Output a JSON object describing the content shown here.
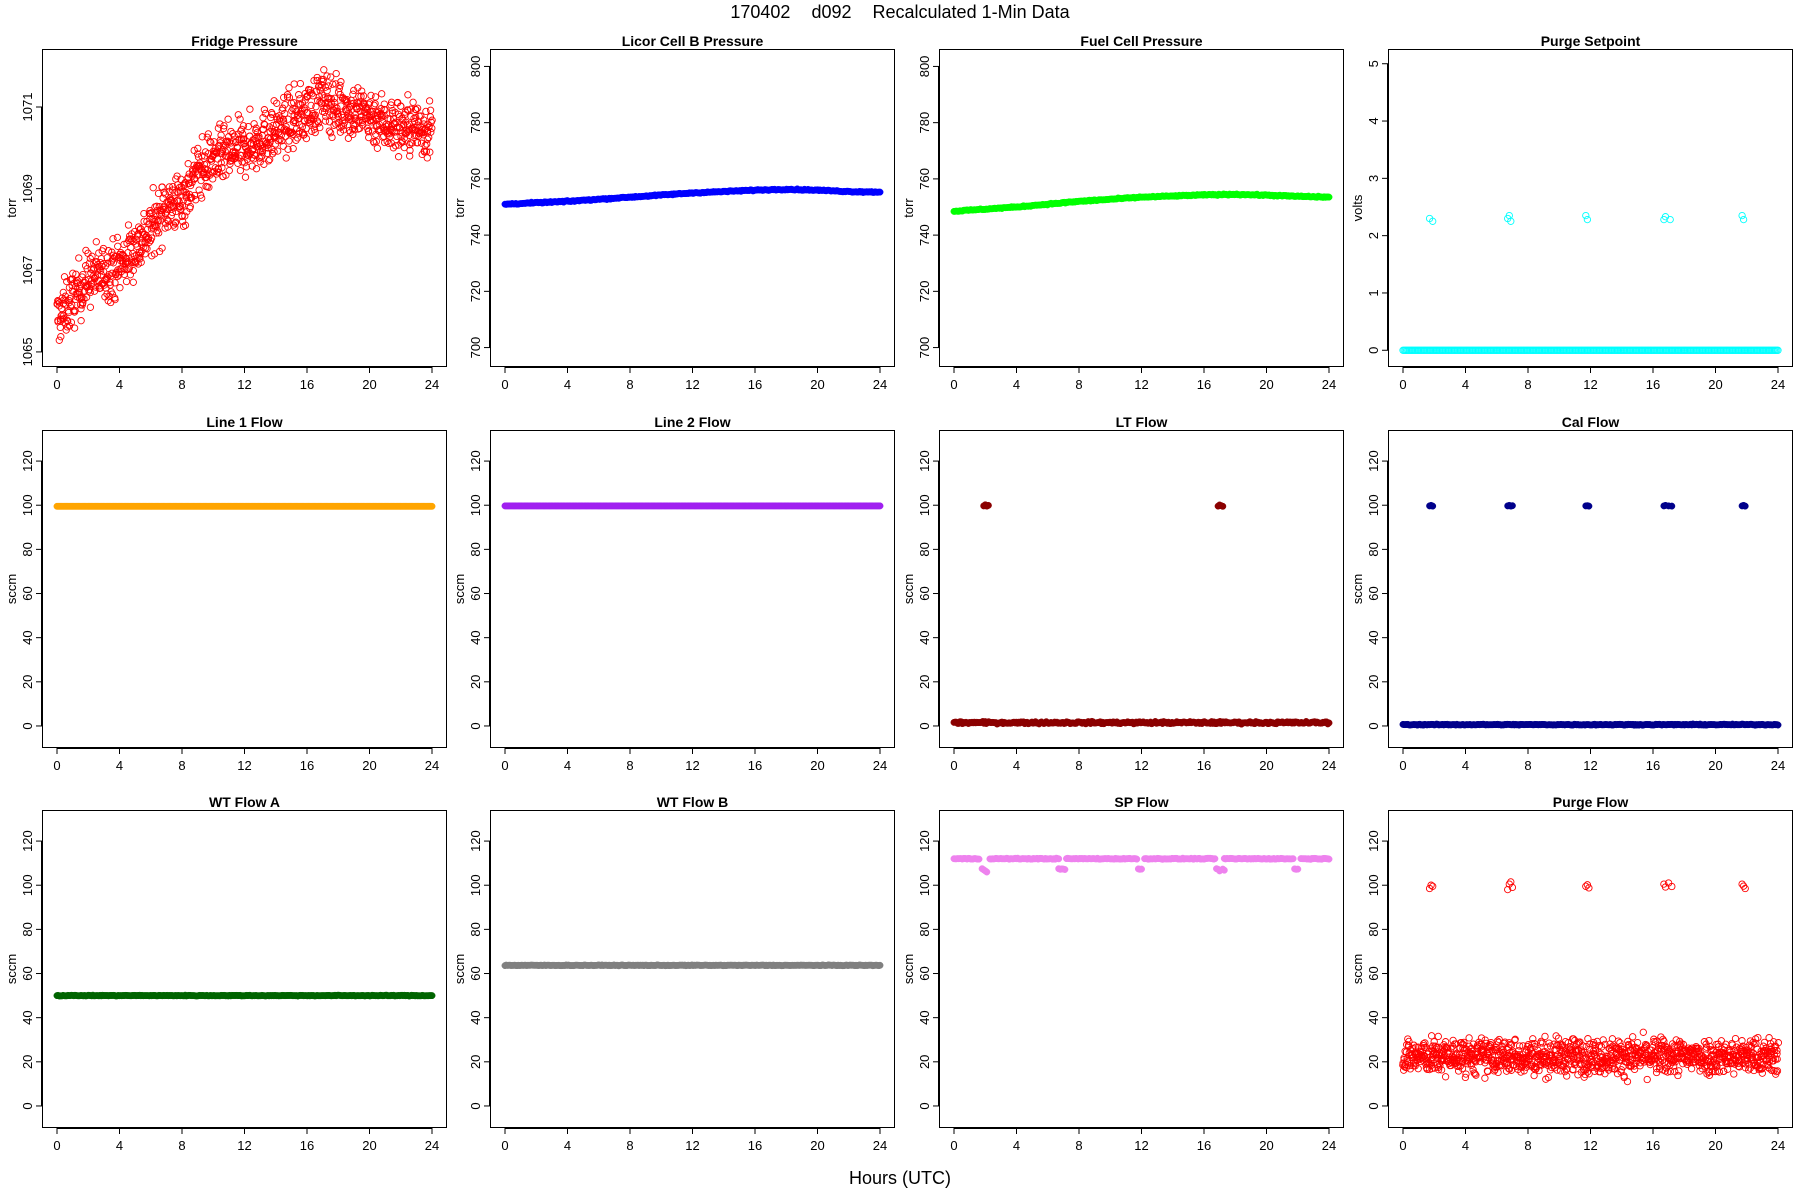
{
  "figure": {
    "title_parts": [
      "170402",
      "d092",
      "Recalculated 1-Min Data"
    ],
    "xlabel": "Hours (UTC)"
  },
  "chart_data": [
    {
      "type": "scatter",
      "title": "Fridge Pressure",
      "ylabel": "torr",
      "xlim": [
        0,
        24
      ],
      "ylim": [
        1064.9,
        1072.2
      ],
      "xticks": [
        0,
        4,
        8,
        12,
        16,
        20,
        24
      ],
      "yticks": [
        1065,
        1067,
        1069,
        1071
      ],
      "marker": "open",
      "color": "#ff0000",
      "series": [
        {
          "x": [
            0,
            2,
            4,
            6,
            7,
            8,
            9,
            10,
            12,
            14,
            16,
            17,
            18,
            19,
            20,
            21,
            22,
            23,
            24
          ],
          "y": [
            1065.8,
            1066.8,
            1067.1,
            1068.0,
            1068.6,
            1068.7,
            1069.4,
            1069.7,
            1070.0,
            1070.4,
            1070.9,
            1071.2,
            1071.0,
            1070.9,
            1070.8,
            1070.6,
            1070.5,
            1070.5,
            1070.4
          ],
          "noise": 0.35
        }
      ]
    },
    {
      "type": "scatter",
      "title": "Licor Cell B Pressure",
      "ylabel": "torr",
      "xlim": [
        0,
        24
      ],
      "ylim": [
        697,
        803
      ],
      "xticks": [
        0,
        4,
        8,
        12,
        16,
        20,
        24
      ],
      "yticks": [
        700,
        720,
        740,
        760,
        780,
        800
      ],
      "marker": "filled",
      "color": "#0000ff",
      "series": [
        {
          "x": [
            0,
            4,
            8,
            12,
            16,
            18,
            20,
            22,
            24
          ],
          "y": [
            751,
            752,
            753.5,
            755,
            756,
            756.3,
            756,
            755.5,
            755.3
          ],
          "noise": 0.2
        }
      ]
    },
    {
      "type": "scatter",
      "title": "Fuel Cell Pressure",
      "ylabel": "torr",
      "xlim": [
        0,
        24
      ],
      "ylim": [
        697,
        803
      ],
      "xticks": [
        0,
        4,
        8,
        12,
        16,
        20,
        24
      ],
      "yticks": [
        700,
        720,
        740,
        760,
        780,
        800
      ],
      "marker": "filled",
      "color": "#00ff00",
      "series": [
        {
          "x": [
            0,
            4,
            8,
            12,
            16,
            18,
            20,
            22,
            24
          ],
          "y": [
            748.5,
            750,
            752,
            753.5,
            754.3,
            754.5,
            754.2,
            753.8,
            753.5
          ],
          "noise": 0.2
        }
      ]
    },
    {
      "type": "scatter",
      "title": "Purge Setpoint",
      "ylabel": "volts",
      "xlim": [
        0,
        24
      ],
      "ylim": [
        -0.1,
        5.1
      ],
      "xticks": [
        0,
        4,
        8,
        12,
        16,
        20,
        24
      ],
      "yticks": [
        0,
        1,
        2,
        3,
        4,
        5
      ],
      "marker": "open",
      "color": "#00ffff",
      "series": [
        {
          "x": [
            0,
            24
          ],
          "y": [
            0,
            0
          ],
          "noise": 0
        },
        {
          "points": [
            [
              1.7,
              2.3
            ],
            [
              1.9,
              2.25
            ],
            [
              6.7,
              2.3
            ],
            [
              6.8,
              2.35
            ],
            [
              6.9,
              2.25
            ],
            [
              11.7,
              2.35
            ],
            [
              11.8,
              2.28
            ],
            [
              16.7,
              2.28
            ],
            [
              16.8,
              2.33
            ],
            [
              17.1,
              2.28
            ],
            [
              21.7,
              2.35
            ],
            [
              21.8,
              2.28
            ]
          ]
        }
      ]
    },
    {
      "type": "scatter",
      "title": "Line 1 Flow",
      "ylabel": "sccm",
      "xlim": [
        0,
        24
      ],
      "ylim": [
        -5,
        130
      ],
      "xticks": [
        0,
        4,
        8,
        12,
        16,
        20,
        24
      ],
      "yticks": [
        0,
        20,
        40,
        60,
        80,
        100,
        120
      ],
      "marker": "filled",
      "color": "#ffa500",
      "series": [
        {
          "x": [
            0,
            24
          ],
          "y": [
            99.5,
            99.5
          ],
          "noise": 0
        }
      ]
    },
    {
      "type": "scatter",
      "title": "Line 2 Flow",
      "ylabel": "sccm",
      "xlim": [
        0,
        24
      ],
      "ylim": [
        -5,
        130
      ],
      "xticks": [
        0,
        4,
        8,
        12,
        16,
        20,
        24
      ],
      "yticks": [
        0,
        20,
        40,
        60,
        80,
        100,
        120
      ],
      "marker": "filled",
      "color": "#a020f0",
      "series": [
        {
          "x": [
            0,
            24
          ],
          "y": [
            99.7,
            99.7
          ],
          "noise": 0
        }
      ]
    },
    {
      "type": "scatter",
      "title": "LT Flow",
      "ylabel": "sccm",
      "xlim": [
        0,
        24
      ],
      "ylim": [
        -5,
        130
      ],
      "xticks": [
        0,
        4,
        8,
        12,
        16,
        20,
        24
      ],
      "yticks": [
        0,
        20,
        40,
        60,
        80,
        100,
        120
      ],
      "marker": "filled",
      "color": "#8b0000",
      "series": [
        {
          "x": [
            0,
            24
          ],
          "y": [
            1.5,
            1.5
          ],
          "noise": 0.5
        },
        {
          "points": [
            [
              1.9,
              99.7
            ],
            [
              2.0,
              100.2
            ],
            [
              2.1,
              99.6
            ],
            [
              2.2,
              99.9
            ],
            [
              16.9,
              99.6
            ],
            [
              17.0,
              100.1
            ],
            [
              17.1,
              99.8
            ],
            [
              17.2,
              99.5
            ]
          ]
        }
      ]
    },
    {
      "type": "scatter",
      "title": "Cal Flow",
      "ylabel": "sccm",
      "xlim": [
        0,
        24
      ],
      "ylim": [
        -5,
        130
      ],
      "xticks": [
        0,
        4,
        8,
        12,
        16,
        20,
        24
      ],
      "yticks": [
        0,
        20,
        40,
        60,
        80,
        100,
        120
      ],
      "marker": "filled",
      "color": "#00008b",
      "series": [
        {
          "x": [
            0,
            24
          ],
          "y": [
            0.6,
            0.6
          ],
          "noise": 0.2
        },
        {
          "points": [
            [
              1.7,
              99.7
            ],
            [
              1.8,
              99.9
            ],
            [
              1.9,
              99.6
            ],
            [
              6.7,
              99.7
            ],
            [
              6.8,
              99.9
            ],
            [
              6.9,
              99.6
            ],
            [
              7.0,
              99.8
            ],
            [
              11.7,
              99.7
            ],
            [
              11.8,
              99.8
            ],
            [
              11.9,
              99.6
            ],
            [
              16.7,
              99.7
            ],
            [
              16.8,
              99.9
            ],
            [
              17.0,
              99.7
            ],
            [
              17.2,
              99.6
            ],
            [
              21.7,
              99.7
            ],
            [
              21.8,
              99.9
            ],
            [
              21.9,
              99.6
            ]
          ]
        }
      ]
    },
    {
      "type": "scatter",
      "title": "WT Flow A",
      "ylabel": "sccm",
      "xlim": [
        0,
        24
      ],
      "ylim": [
        -5,
        130
      ],
      "xticks": [
        0,
        4,
        8,
        12,
        16,
        20,
        24
      ],
      "yticks": [
        0,
        20,
        40,
        60,
        80,
        100,
        120
      ],
      "marker": "filled",
      "color": "#006400",
      "series": [
        {
          "x": [
            0,
            24
          ],
          "y": [
            50,
            50
          ],
          "noise": 0.15
        }
      ]
    },
    {
      "type": "scatter",
      "title": "WT Flow B",
      "ylabel": "sccm",
      "xlim": [
        0,
        24
      ],
      "ylim": [
        -5,
        130
      ],
      "xticks": [
        0,
        4,
        8,
        12,
        16,
        20,
        24
      ],
      "yticks": [
        0,
        20,
        40,
        60,
        80,
        100,
        120
      ],
      "marker": "filled",
      "color": "#808080",
      "series": [
        {
          "x": [
            0,
            24
          ],
          "y": [
            63.7,
            63.7
          ],
          "noise": 0.15
        }
      ]
    },
    {
      "type": "scatter",
      "title": "SP Flow",
      "ylabel": "sccm",
      "xlim": [
        0,
        24
      ],
      "ylim": [
        -5,
        130
      ],
      "xticks": [
        0,
        4,
        8,
        12,
        16,
        20,
        24
      ],
      "yticks": [
        0,
        20,
        40,
        60,
        80,
        100,
        120
      ],
      "marker": "filled",
      "color": "#ee82ee",
      "series": [
        {
          "x": [
            0,
            1.6
          ],
          "y": [
            112,
            112
          ],
          "noise": 0.2
        },
        {
          "x": [
            2.3,
            6.7
          ],
          "y": [
            112,
            112
          ],
          "noise": 0.2
        },
        {
          "x": [
            7.2,
            11.7
          ],
          "y": [
            112,
            112
          ],
          "noise": 0.2
        },
        {
          "x": [
            12.2,
            16.7
          ],
          "y": [
            112,
            112
          ],
          "noise": 0.2
        },
        {
          "x": [
            17.3,
            21.7
          ],
          "y": [
            112,
            112
          ],
          "noise": 0.2
        },
        {
          "x": [
            22.2,
            24
          ],
          "y": [
            112,
            112
          ],
          "noise": 0.2
        },
        {
          "points": [
            [
              1.8,
              107.5
            ],
            [
              1.9,
              107
            ],
            [
              2.0,
              106.5
            ],
            [
              2.1,
              106
            ],
            [
              6.7,
              107.5
            ],
            [
              6.8,
              107.2
            ],
            [
              6.9,
              107.4
            ],
            [
              7.0,
              107.3
            ],
            [
              7.1,
              107.1
            ],
            [
              11.8,
              107.4
            ],
            [
              11.9,
              107.2
            ],
            [
              12.0,
              107.3
            ],
            [
              16.8,
              107.5
            ],
            [
              16.9,
              107.2
            ],
            [
              17.0,
              106.5
            ],
            [
              17.2,
              107.3
            ],
            [
              17.3,
              106.8
            ],
            [
              21.8,
              107.4
            ],
            [
              21.9,
              107.2
            ],
            [
              22.0,
              107.3
            ]
          ]
        }
      ]
    },
    {
      "type": "scatter",
      "title": "Purge Flow",
      "ylabel": "sccm",
      "xlim": [
        0,
        24
      ],
      "ylim": [
        -5,
        130
      ],
      "xticks": [
        0,
        4,
        8,
        12,
        16,
        20,
        24
      ],
      "yticks": [
        0,
        20,
        40,
        60,
        80,
        100,
        120
      ],
      "marker": "open",
      "color": "#ff0000",
      "series": [
        {
          "x": [
            0,
            24
          ],
          "y": [
            22.5,
            22.5
          ],
          "noise": 4
        },
        {
          "points": [
            [
              1.7,
              98.5
            ],
            [
              1.8,
              100
            ],
            [
              1.9,
              99.5
            ],
            [
              6.7,
              98
            ],
            [
              6.8,
              100.5
            ],
            [
              6.9,
              101.5
            ],
            [
              7.0,
              99
            ],
            [
              11.7,
              99.5
            ],
            [
              11.8,
              100.2
            ],
            [
              11.9,
              98.8
            ],
            [
              16.7,
              100.5
            ],
            [
              16.8,
              99.2
            ],
            [
              17.0,
              101
            ],
            [
              17.2,
              99.4
            ],
            [
              21.7,
              100.5
            ],
            [
              21.8,
              99.6
            ],
            [
              21.9,
              98.5
            ]
          ]
        }
      ]
    }
  ]
}
